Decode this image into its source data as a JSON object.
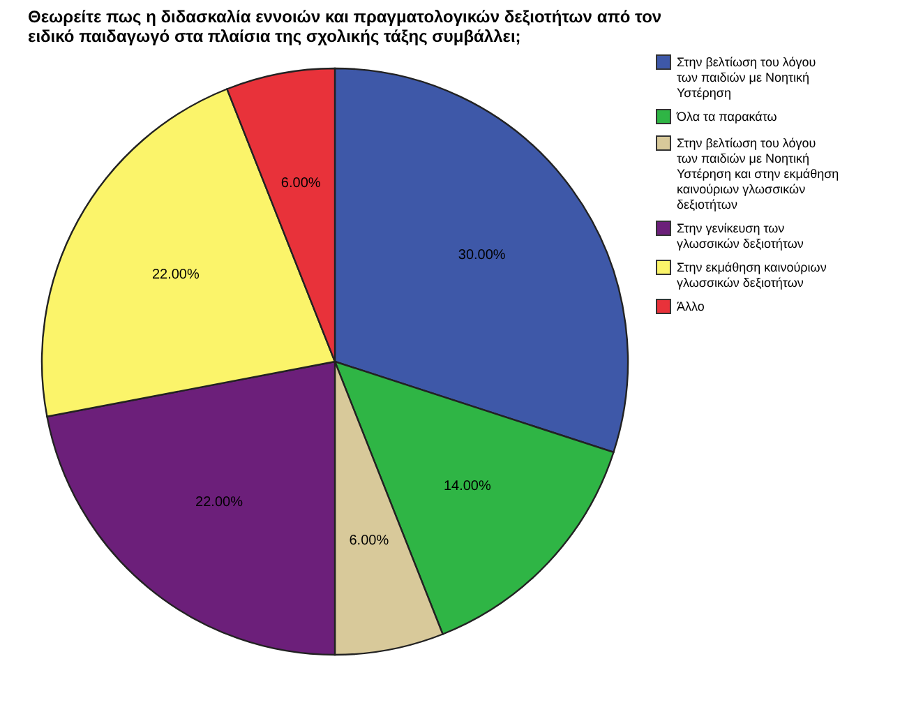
{
  "chart_data": {
    "type": "pie",
    "title": [
      "Θεωρείτε πως η διδασκαλία εννοιών και πραγματολογικών δεξιοτήτων από τον",
      "ειδικό παιδαγωγό στα πλαίσια της σχολικής τάξης συμβάλλει;"
    ],
    "categories": [
      "Στην βελτίωση του λόγου των παιδιών με Νοητική Υστέρηση",
      "Όλα τα παρακάτω",
      "Στην βελτίωση του λόγου των παιδιών με Νοητική Υστέρηση και στην εκμάθηση καινούριων γλωσσικών δεξιοτήτων",
      "Στην γενίκευση των γλωσσικών δεξιοτήτων",
      "Στην εκμάθηση καινούριων γλωσσικών δεξιοτήτων",
      "Άλλο"
    ],
    "values": [
      30,
      14,
      6,
      22,
      22,
      6
    ],
    "value_labels": [
      "30.00%",
      "14.00%",
      "6.00%",
      "22.00%",
      "22.00%",
      "6.00%"
    ],
    "colors": [
      "#3e58a8",
      "#2fb545",
      "#d8c99a",
      "#6c1f7a",
      "#fbf46a",
      "#e8323a"
    ],
    "legend": "top right"
  }
}
